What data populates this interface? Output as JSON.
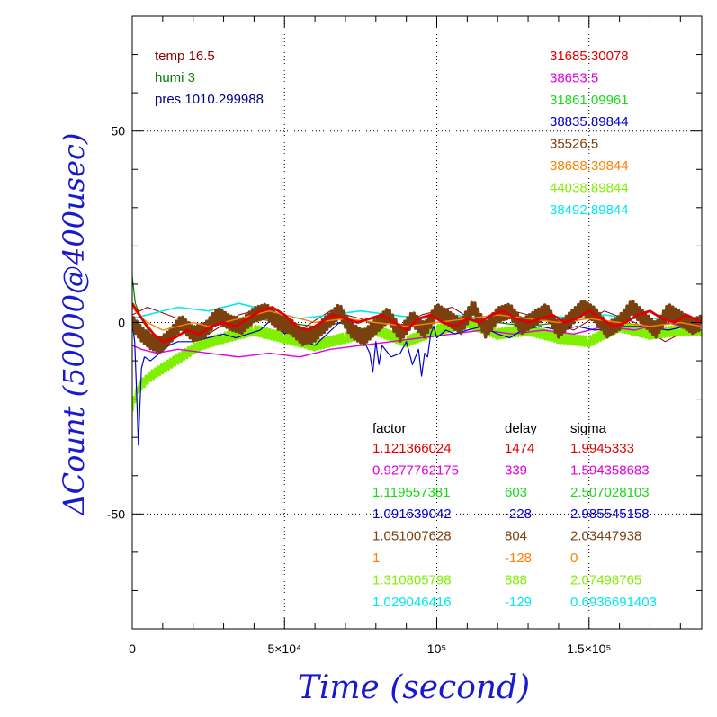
{
  "chart_data": {
    "type": "line",
    "xlabel": "Time (second)",
    "ylabel": "ΔCount (50000@400usec)",
    "xlim": [
      0,
      187000
    ],
    "ylim": [
      -80,
      80
    ],
    "x_ticks": [
      {
        "value": 0,
        "label": "0"
      },
      {
        "value": 50000,
        "label": "5×10⁴"
      },
      {
        "value": 100000,
        "label": "10⁵"
      },
      {
        "value": 150000,
        "label": "1.5×10⁵"
      }
    ],
    "y_ticks": [
      {
        "value": -50,
        "label": "-50"
      },
      {
        "value": 0,
        "label": "0"
      },
      {
        "value": 50,
        "label": "50"
      }
    ],
    "grid": true,
    "env_labels": [
      {
        "text": "temp 16.5",
        "color": "#8b0000"
      },
      {
        "text": "humi 3",
        "color": "#008000"
      },
      {
        "text": "pres 1010.299988",
        "color": "#00008b"
      }
    ],
    "means": [
      {
        "text": "31685.30078",
        "color": "#e00000"
      },
      {
        "text": "38653.5",
        "color": "#e000e0"
      },
      {
        "text": "31861.09961",
        "color": "#18d818"
      },
      {
        "text": "38835.89844",
        "color": "#0000d0"
      },
      {
        "text": "35526.5",
        "color": "#7a4010"
      },
      {
        "text": "38688.39844",
        "color": "#ff8000"
      },
      {
        "text": "44038.89844",
        "color": "#80f000"
      },
      {
        "text": "38492.89844",
        "color": "#00e8f0"
      }
    ],
    "table": {
      "headers": [
        "factor",
        "delay",
        "sigma"
      ],
      "rows": [
        {
          "factor": "1.121366024",
          "delay": "1474",
          "sigma": "1.9945333",
          "color": "#e00000"
        },
        {
          "factor": "0.9277762175",
          "delay": "339",
          "sigma": "1.594358683",
          "color": "#e000e0"
        },
        {
          "factor": "1.119557381",
          "delay": "603",
          "sigma": "2.507028103",
          "color": "#18d818"
        },
        {
          "factor": "1.091639042",
          "delay": "-228",
          "sigma": "2.985545158",
          "color": "#0000d0"
        },
        {
          "factor": "1.051007628",
          "delay": "804",
          "sigma": "2.03447938",
          "color": "#7a4010"
        },
        {
          "factor": "1",
          "delay": "-128",
          "sigma": "0",
          "color": "#ff8000"
        },
        {
          "factor": "1.310805798",
          "delay": "888",
          "sigma": "2.07498765",
          "color": "#80f000"
        },
        {
          "factor": "1.029046416",
          "delay": "-129",
          "sigma": "0.6936691403",
          "color": "#00e8f0"
        }
      ]
    },
    "series": [
      {
        "color": "#8b0000",
        "width": 1,
        "x": [
          0,
          5000,
          15000,
          25000,
          35000,
          45000,
          55000,
          65000,
          75000,
          85000,
          95000,
          105000,
          115000,
          125000,
          135000,
          145000,
          155000,
          165000,
          175000,
          187000
        ],
        "y": [
          2,
          4,
          1,
          -3,
          2,
          4,
          -2,
          3,
          1,
          -3,
          2,
          4,
          -1,
          3,
          1,
          -2,
          3,
          0,
          -5,
          0
        ]
      },
      {
        "color": "#00e8f0",
        "width": 1.6,
        "x": [
          0,
          5000,
          15000,
          25000,
          35000,
          45000,
          55000,
          65000,
          75000,
          85000,
          95000,
          105000,
          115000,
          125000,
          135000,
          145000,
          155000,
          165000,
          175000,
          187000
        ],
        "y": [
          1,
          2,
          4,
          3,
          5,
          3,
          1,
          2,
          3,
          2,
          1,
          2,
          1,
          1,
          2,
          1,
          2,
          1,
          1,
          0
        ]
      },
      {
        "color": "#008000",
        "width": 1.2,
        "x": [
          0,
          1000,
          3000,
          6000,
          10000,
          15000,
          20000,
          30000,
          40000,
          50000,
          60000,
          70000,
          80000,
          90000,
          100000,
          110000,
          120000,
          130000,
          140000,
          150000,
          160000,
          170000,
          180000,
          187000
        ],
        "y": [
          12,
          5,
          1,
          -3,
          -4,
          -2,
          -1,
          0,
          1,
          0,
          -1,
          0,
          1,
          -1,
          0,
          1,
          0,
          -1,
          0,
          1,
          0,
          -1,
          0,
          -2
        ]
      },
      {
        "color": "#80f000",
        "width": 3.2,
        "jitter": 1.2,
        "x": [
          0,
          2000,
          6000,
          10000,
          14000,
          18000,
          22000,
          30000,
          40000,
          50000,
          60000,
          70000,
          80000,
          90000,
          100000,
          110000,
          120000,
          130000,
          140000,
          150000,
          160000,
          170000,
          180000,
          187000
        ],
        "y": [
          -22,
          -17,
          -14,
          -12,
          -10,
          -8,
          -6,
          -4,
          -2,
          -4,
          -6,
          -4,
          -2,
          -5,
          -2,
          0,
          -3,
          -2,
          -4,
          -5,
          -1,
          -3,
          -2,
          -2
        ]
      },
      {
        "color": "#e000e0",
        "width": 1.4,
        "x": [
          0,
          3000,
          8000,
          15000,
          25000,
          35000,
          45000,
          55000,
          65000,
          75000,
          85000,
          95000,
          105000,
          115000,
          125000,
          135000,
          145000,
          155000,
          165000,
          175000,
          187000
        ],
        "y": [
          -6,
          -7,
          -8,
          -7,
          -8,
          -9,
          -8,
          -9,
          -7,
          -6,
          -5,
          -4,
          -3,
          -2,
          -3,
          -2,
          -3,
          -1,
          -2,
          0,
          -2
        ]
      },
      {
        "color": "#0000d0",
        "width": 1.2,
        "x": [
          0,
          800,
          1500,
          2000,
          3000,
          4000,
          6000,
          9000,
          12000,
          15000,
          20000,
          25000,
          30000,
          34000,
          38000,
          42000,
          46000,
          50000,
          54000,
          57000,
          60000,
          64000,
          68000,
          72000,
          75000,
          78000,
          79000,
          80000,
          81000,
          82000,
          85000,
          88000,
          90000,
          92000,
          94000,
          95000,
          96000,
          97000,
          98000,
          99000,
          100000,
          103000,
          106000,
          110000,
          115000,
          120000,
          124000,
          128000,
          134000,
          140000,
          146000,
          152000,
          160000,
          168000,
          176000,
          187000
        ],
        "y": [
          0,
          -5,
          -20,
          -32,
          -12,
          -9,
          -10,
          -8,
          -6,
          -5,
          -5,
          -4,
          -3,
          -4,
          -3,
          -2,
          1,
          -3,
          -1,
          -5,
          -6,
          -3,
          0,
          -1,
          -3,
          -8,
          -13,
          -5,
          -11,
          -6,
          -9,
          -8,
          -5,
          -11,
          -7,
          -14,
          -8,
          -9,
          -3,
          -1,
          -4,
          -2,
          -3,
          -2,
          -1,
          -3,
          -4,
          -2,
          -1,
          -2,
          -1,
          -2,
          -1,
          -1,
          -2,
          0
        ]
      },
      {
        "color": "#7a4010",
        "width": 3.6,
        "jitter": 1.8,
        "x": [
          0,
          3000,
          6000,
          9000,
          12000,
          16000,
          20000,
          24000,
          28000,
          32000,
          36000,
          40000,
          44000,
          48000,
          52000,
          56000,
          60000,
          64000,
          68000,
          72000,
          76000,
          80000,
          84000,
          88000,
          92000,
          96000,
          100000,
          104000,
          108000,
          112000,
          116000,
          120000,
          124000,
          128000,
          132000,
          136000,
          140000,
          144000,
          148000,
          152000,
          156000,
          160000,
          164000,
          168000,
          172000,
          176000,
          180000,
          184000,
          187000
        ],
        "y": [
          0,
          -3,
          -5,
          -6,
          -4,
          0,
          -3,
          -2,
          2,
          0,
          -1,
          2,
          3,
          0,
          -1,
          -4,
          -3,
          0,
          3,
          -2,
          -4,
          -1,
          2,
          -3,
          1,
          -2,
          3,
          1,
          -1,
          4,
          -2,
          2,
          3,
          -1,
          1,
          3,
          -2,
          1,
          4,
          2,
          -2,
          0,
          4,
          1,
          -2,
          3,
          1,
          -1,
          0
        ]
      },
      {
        "color": "#ff8000",
        "width": 1.4,
        "x": [
          0,
          2000,
          5000,
          10000,
          15000,
          20000,
          25000,
          30000,
          35000,
          40000,
          45000,
          50000,
          60000,
          70000,
          80000,
          90000,
          100000,
          110000,
          120000,
          130000,
          140000,
          150000,
          160000,
          170000,
          180000,
          187000
        ],
        "y": [
          4,
          2,
          0,
          -2,
          -1,
          0,
          -1,
          0,
          1,
          2,
          3,
          2,
          0,
          1,
          0,
          -1,
          0,
          1,
          2,
          1,
          0,
          1,
          0,
          -1,
          0,
          -1
        ]
      },
      {
        "color": "#e00000",
        "width": 2.8,
        "x": [
          0,
          1500,
          4000,
          7000,
          10000,
          14000,
          18000,
          22000,
          26000,
          30000,
          34000,
          38000,
          42000,
          46000,
          50000,
          54000,
          58000,
          62000,
          66000,
          70000,
          74000,
          78000,
          82000,
          86000,
          90000,
          94000,
          98000,
          102000,
          106000,
          110000,
          114000,
          118000,
          122000,
          126000,
          130000,
          134000,
          138000,
          142000,
          146000,
          150000,
          154000,
          158000,
          162000,
          166000,
          170000,
          174000,
          178000,
          182000,
          187000
        ],
        "y": [
          5,
          3,
          0,
          -3,
          -5,
          -4,
          -2,
          -3,
          -1,
          0,
          -1,
          1,
          3,
          4,
          2,
          -1,
          -2,
          0,
          2,
          1,
          0,
          1,
          2,
          0,
          -2,
          1,
          2,
          0,
          -1,
          1,
          0,
          2,
          3,
          1,
          0,
          1,
          2,
          0,
          1,
          3,
          1,
          -1,
          0,
          2,
          3,
          1,
          0,
          2,
          0
        ]
      }
    ]
  }
}
